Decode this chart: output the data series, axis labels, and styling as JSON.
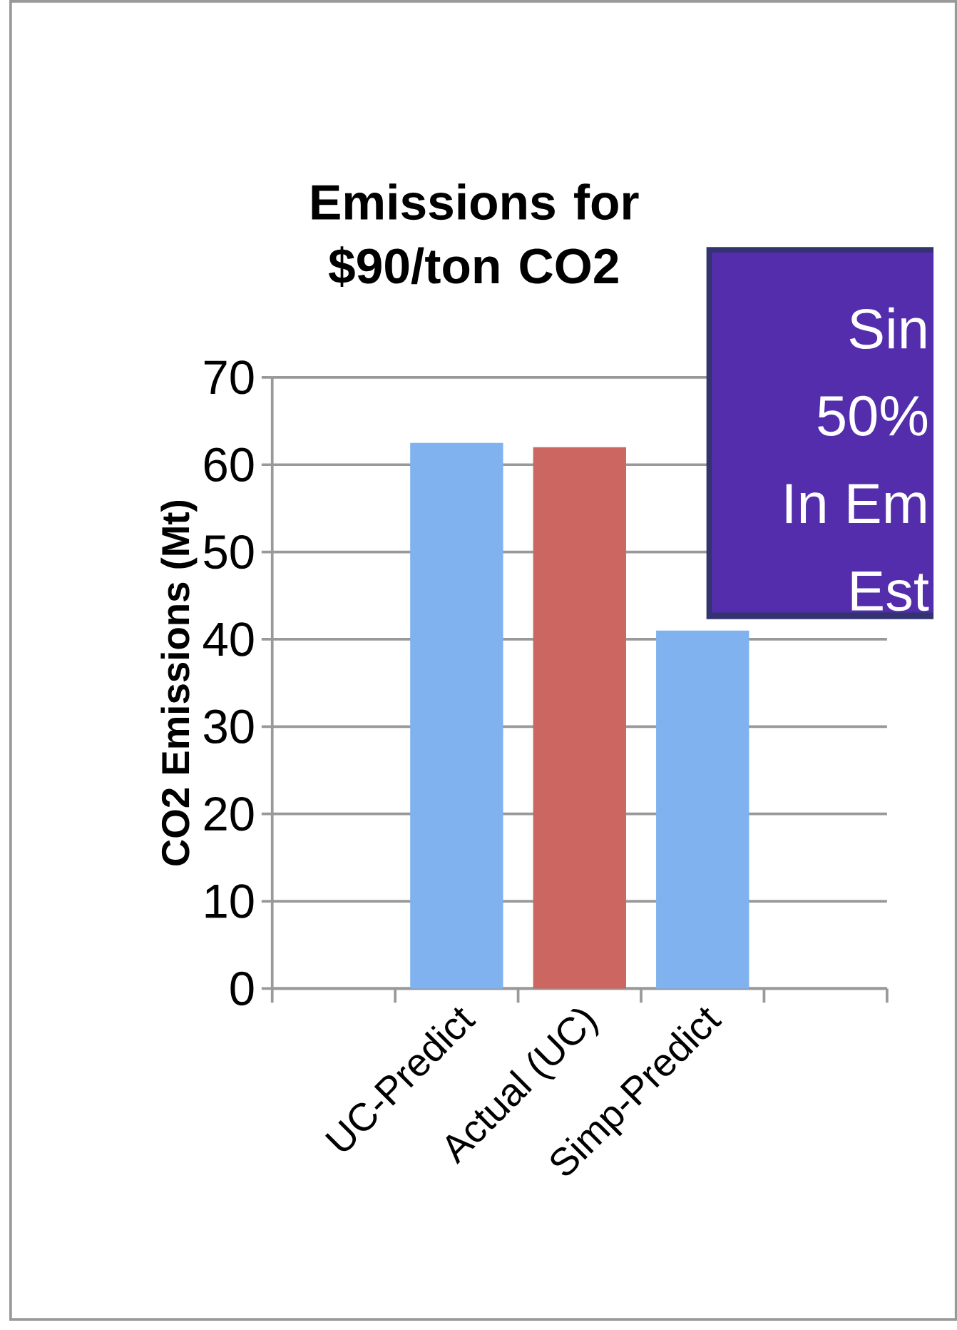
{
  "chart_data": {
    "type": "bar",
    "title": "Emissions for $90/ton CO2",
    "ylabel": "CO2 Emissions (Mt)",
    "categories": [
      null,
      "UC-Predict",
      "Actual (UC)",
      "Simp-Predict",
      null
    ],
    "values": [
      null,
      62.5,
      62,
      41,
      null
    ],
    "colors": [
      "#7fb2ee",
      "#7fb2ee",
      "#cc6660",
      "#7fb2ee",
      "#7fb2ee"
    ],
    "ylim": [
      0,
      70
    ],
    "yticks": [
      0,
      10,
      20,
      30,
      40,
      50,
      60,
      70
    ],
    "grid": "y",
    "annotations": [
      "Sin",
      "50%",
      "In Em",
      "Est"
    ]
  }
}
